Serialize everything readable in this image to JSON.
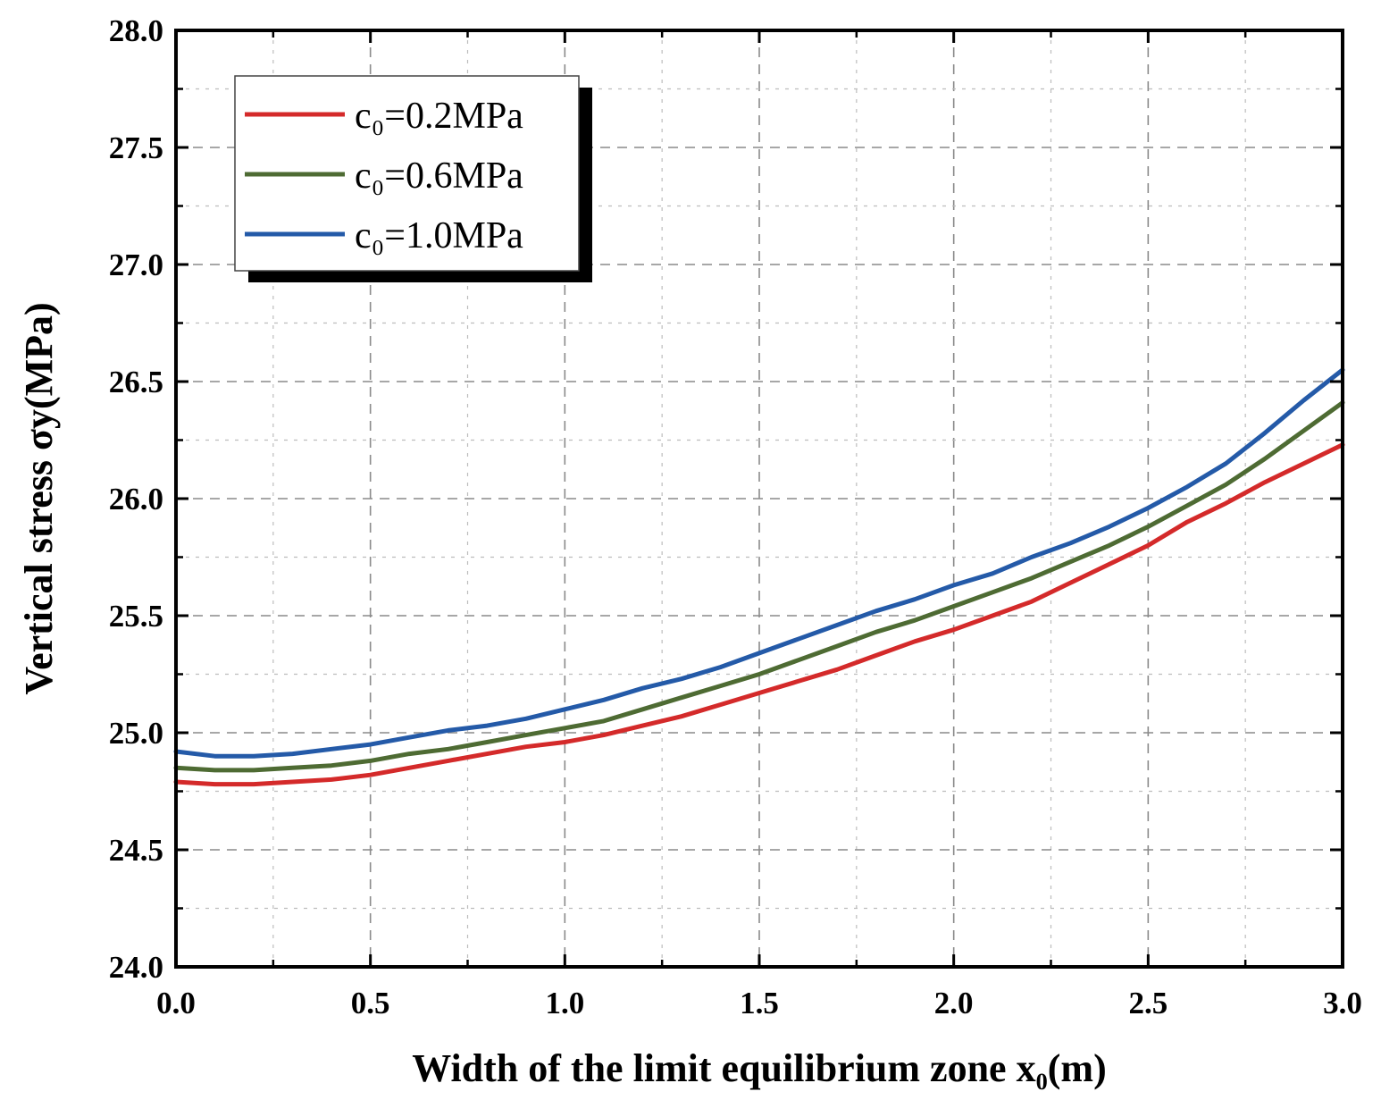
{
  "chart_data": {
    "type": "line",
    "title": "",
    "xlabel": "Width of the limit equilibrium zone x₀(m)",
    "ylabel": "Vertical stress σy(MPa)",
    "xlim": [
      0.0,
      3.0
    ],
    "ylim": [
      24.0,
      28.0
    ],
    "xticks": [
      "0.0",
      "0.5",
      "1.0",
      "1.5",
      "2.0",
      "2.5",
      "3.0"
    ],
    "yticks": [
      "24.0",
      "24.5",
      "25.0",
      "25.5",
      "26.0",
      "26.5",
      "27.0",
      "27.5",
      "28.0"
    ],
    "grid": true,
    "legend_position": "top-left",
    "x": [
      0.0,
      0.1,
      0.2,
      0.3,
      0.4,
      0.5,
      0.6,
      0.7,
      0.8,
      0.9,
      1.0,
      1.1,
      1.2,
      1.3,
      1.4,
      1.5,
      1.6,
      1.7,
      1.8,
      1.9,
      2.0,
      2.1,
      2.2,
      2.3,
      2.4,
      2.5,
      2.6,
      2.7,
      2.8,
      2.9,
      3.0
    ],
    "series": [
      {
        "name": "c₀=0.2MPa",
        "color": "#d42a2a",
        "values": [
          24.79,
          24.78,
          24.78,
          24.79,
          24.8,
          24.82,
          24.85,
          24.88,
          24.91,
          24.94,
          24.96,
          24.99,
          25.03,
          25.07,
          25.12,
          25.17,
          25.22,
          25.27,
          25.33,
          25.39,
          25.44,
          25.5,
          25.56,
          25.64,
          25.72,
          25.8,
          25.9,
          25.98,
          26.07,
          26.15,
          26.23
        ]
      },
      {
        "name": "c₀=0.6MPa",
        "color": "#4e6b33",
        "values": [
          24.85,
          24.84,
          24.84,
          24.85,
          24.86,
          24.88,
          24.91,
          24.93,
          24.96,
          24.99,
          25.02,
          25.05,
          25.1,
          25.15,
          25.2,
          25.25,
          25.31,
          25.37,
          25.43,
          25.48,
          25.54,
          25.6,
          25.66,
          25.73,
          25.8,
          25.88,
          25.97,
          26.06,
          26.17,
          26.29,
          26.41
        ]
      },
      {
        "name": "c₀=1.0MPa",
        "color": "#245aa8",
        "values": [
          24.92,
          24.9,
          24.9,
          24.91,
          24.93,
          24.95,
          24.98,
          25.01,
          25.03,
          25.06,
          25.1,
          25.14,
          25.19,
          25.23,
          25.28,
          25.34,
          25.4,
          25.46,
          25.52,
          25.57,
          25.63,
          25.68,
          25.75,
          25.81,
          25.88,
          25.96,
          26.05,
          26.15,
          26.28,
          26.42,
          26.55
        ]
      }
    ]
  }
}
